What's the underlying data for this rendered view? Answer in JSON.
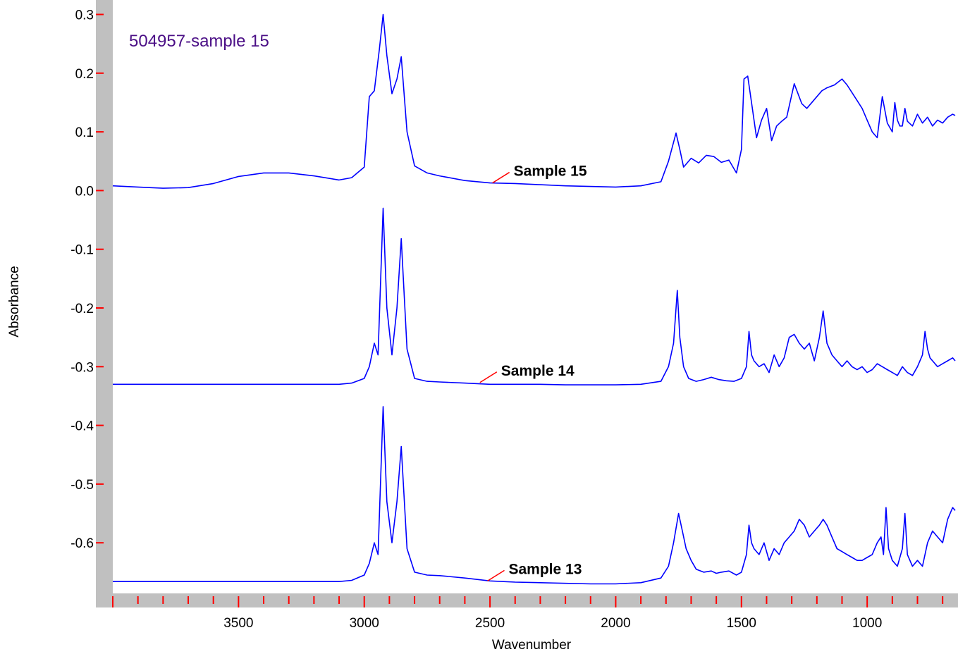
{
  "chart_data": {
    "type": "line",
    "title": "504957-sample 15",
    "xlabel": "Wavenumber",
    "ylabel": "Absorbance",
    "xlim": [
      4000,
      650
    ],
    "ylim": [
      -0.7,
      0.3
    ],
    "x_reversed": true,
    "x_ticks": [
      3500,
      3000,
      2500,
      2000,
      1500,
      1000
    ],
    "x_tick_labels": [
      "3500",
      "3000",
      "2500",
      "2000",
      "1500",
      "1000"
    ],
    "y_ticks": [
      0.3,
      0.2,
      0.1,
      0.0,
      -0.1,
      -0.2,
      -0.3,
      -0.4,
      -0.5,
      -0.6
    ],
    "y_tick_labels": [
      "0.3",
      "0.2",
      "0.1",
      "0.0",
      "-0.1",
      "-0.2",
      "-0.3",
      "-0.4",
      "-0.5",
      "-0.6"
    ],
    "grid": false,
    "colors": {
      "line": "#0000ff",
      "frame": "#c0c0c0",
      "tick_mark": "#ff0000",
      "label_leader": "#ff0000",
      "title": "#4b0f86"
    },
    "series": [
      {
        "name": "Sample 15",
        "label_anchor": [
          2490,
          0.013
        ],
        "x": [
          4000,
          3900,
          3800,
          3700,
          3600,
          3500,
          3400,
          3300,
          3200,
          3100,
          3050,
          3000,
          2980,
          2960,
          2940,
          2925,
          2910,
          2890,
          2870,
          2853,
          2830,
          2800,
          2750,
          2700,
          2600,
          2500,
          2400,
          2300,
          2200,
          2100,
          2000,
          1900,
          1820,
          1790,
          1760,
          1745,
          1730,
          1700,
          1670,
          1640,
          1610,
          1580,
          1550,
          1520,
          1500,
          1490,
          1475,
          1460,
          1440,
          1420,
          1400,
          1380,
          1360,
          1340,
          1320,
          1290,
          1260,
          1240,
          1210,
          1180,
          1160,
          1130,
          1100,
          1080,
          1050,
          1020,
          1000,
          980,
          960,
          940,
          920,
          900,
          890,
          880,
          870,
          860,
          850,
          840,
          820,
          800,
          780,
          760,
          740,
          720,
          700,
          680,
          660,
          650
        ],
        "y": [
          0.008,
          0.006,
          0.004,
          0.005,
          0.012,
          0.024,
          0.03,
          0.03,
          0.025,
          0.018,
          0.022,
          0.04,
          0.16,
          0.17,
          0.24,
          0.3,
          0.23,
          0.165,
          0.19,
          0.228,
          0.1,
          0.042,
          0.03,
          0.025,
          0.017,
          0.013,
          0.012,
          0.01,
          0.008,
          0.007,
          0.006,
          0.008,
          0.015,
          0.05,
          0.098,
          0.07,
          0.04,
          0.055,
          0.047,
          0.06,
          0.058,
          0.048,
          0.052,
          0.03,
          0.07,
          0.19,
          0.195,
          0.15,
          0.09,
          0.12,
          0.14,
          0.085,
          0.11,
          0.118,
          0.125,
          0.182,
          0.148,
          0.14,
          0.155,
          0.17,
          0.175,
          0.18,
          0.19,
          0.18,
          0.16,
          0.14,
          0.12,
          0.1,
          0.09,
          0.16,
          0.115,
          0.1,
          0.15,
          0.12,
          0.11,
          0.11,
          0.14,
          0.118,
          0.11,
          0.13,
          0.115,
          0.125,
          0.11,
          0.12,
          0.115,
          0.125,
          0.13,
          0.128
        ]
      },
      {
        "name": "Sample 14",
        "label_anchor": [
          2540,
          -0.327
        ],
        "x": [
          4000,
          3800,
          3600,
          3400,
          3200,
          3100,
          3050,
          3000,
          2980,
          2960,
          2945,
          2925,
          2910,
          2890,
          2870,
          2853,
          2830,
          2800,
          2750,
          2700,
          2600,
          2500,
          2400,
          2300,
          2200,
          2100,
          2000,
          1900,
          1820,
          1790,
          1770,
          1755,
          1745,
          1730,
          1710,
          1680,
          1650,
          1620,
          1590,
          1560,
          1530,
          1500,
          1480,
          1470,
          1460,
          1450,
          1430,
          1410,
          1390,
          1370,
          1350,
          1330,
          1310,
          1290,
          1270,
          1250,
          1230,
          1210,
          1190,
          1175,
          1160,
          1140,
          1120,
          1100,
          1080,
          1060,
          1040,
          1020,
          1000,
          980,
          960,
          940,
          920,
          900,
          880,
          860,
          840,
          820,
          800,
          780,
          770,
          760,
          750,
          740,
          720,
          700,
          680,
          660,
          650
        ],
        "y": [
          -0.33,
          -0.33,
          -0.33,
          -0.33,
          -0.33,
          -0.33,
          -0.328,
          -0.32,
          -0.3,
          -0.26,
          -0.28,
          -0.03,
          -0.2,
          -0.28,
          -0.2,
          -0.082,
          -0.27,
          -0.32,
          -0.325,
          -0.326,
          -0.328,
          -0.33,
          -0.33,
          -0.33,
          -0.331,
          -0.331,
          -0.331,
          -0.33,
          -0.325,
          -0.3,
          -0.26,
          -0.17,
          -0.25,
          -0.3,
          -0.32,
          -0.325,
          -0.322,
          -0.318,
          -0.322,
          -0.324,
          -0.325,
          -0.32,
          -0.3,
          -0.24,
          -0.28,
          -0.29,
          -0.3,
          -0.295,
          -0.31,
          -0.28,
          -0.3,
          -0.285,
          -0.25,
          -0.245,
          -0.26,
          -0.27,
          -0.26,
          -0.29,
          -0.25,
          -0.205,
          -0.26,
          -0.28,
          -0.29,
          -0.3,
          -0.29,
          -0.3,
          -0.305,
          -0.3,
          -0.31,
          -0.305,
          -0.295,
          -0.3,
          -0.305,
          -0.31,
          -0.315,
          -0.3,
          -0.31,
          -0.315,
          -0.3,
          -0.28,
          -0.24,
          -0.27,
          -0.285,
          -0.29,
          -0.3,
          -0.295,
          -0.29,
          -0.285,
          -0.29
        ]
      },
      {
        "name": "Sample 13",
        "label_anchor": [
          2510,
          -0.665
        ],
        "x": [
          4000,
          3800,
          3600,
          3400,
          3200,
          3100,
          3050,
          3000,
          2980,
          2960,
          2945,
          2925,
          2910,
          2890,
          2870,
          2853,
          2830,
          2800,
          2750,
          2700,
          2600,
          2500,
          2400,
          2300,
          2200,
          2100,
          2000,
          1900,
          1820,
          1790,
          1770,
          1750,
          1735,
          1720,
          1700,
          1680,
          1650,
          1620,
          1600,
          1580,
          1550,
          1520,
          1500,
          1480,
          1470,
          1460,
          1450,
          1430,
          1410,
          1390,
          1370,
          1350,
          1330,
          1310,
          1290,
          1270,
          1250,
          1230,
          1210,
          1190,
          1175,
          1160,
          1140,
          1120,
          1100,
          1080,
          1060,
          1040,
          1020,
          1000,
          980,
          960,
          945,
          935,
          925,
          915,
          900,
          880,
          860,
          850,
          840,
          820,
          800,
          780,
          760,
          740,
          720,
          700,
          680,
          660,
          650
        ],
        "y": [
          -0.666,
          -0.666,
          -0.666,
          -0.666,
          -0.666,
          -0.666,
          -0.664,
          -0.655,
          -0.635,
          -0.6,
          -0.62,
          -0.368,
          -0.53,
          -0.6,
          -0.53,
          -0.436,
          -0.61,
          -0.65,
          -0.655,
          -0.656,
          -0.66,
          -0.665,
          -0.667,
          -0.668,
          -0.669,
          -0.67,
          -0.67,
          -0.668,
          -0.66,
          -0.64,
          -0.6,
          -0.55,
          -0.58,
          -0.61,
          -0.63,
          -0.645,
          -0.65,
          -0.648,
          -0.652,
          -0.65,
          -0.648,
          -0.655,
          -0.65,
          -0.62,
          -0.57,
          -0.6,
          -0.61,
          -0.62,
          -0.6,
          -0.63,
          -0.61,
          -0.62,
          -0.6,
          -0.59,
          -0.58,
          -0.56,
          -0.57,
          -0.59,
          -0.58,
          -0.57,
          -0.56,
          -0.57,
          -0.59,
          -0.61,
          -0.615,
          -0.62,
          -0.625,
          -0.63,
          -0.63,
          -0.625,
          -0.62,
          -0.6,
          -0.59,
          -0.62,
          -0.54,
          -0.61,
          -0.63,
          -0.64,
          -0.61,
          -0.55,
          -0.62,
          -0.64,
          -0.63,
          -0.64,
          -0.6,
          -0.58,
          -0.59,
          -0.6,
          -0.56,
          -0.54,
          -0.545
        ]
      }
    ]
  }
}
